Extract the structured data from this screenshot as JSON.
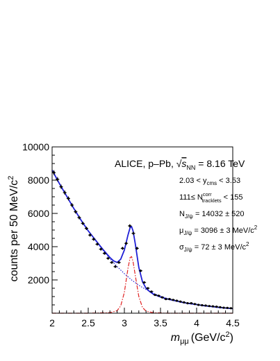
{
  "chart_data": {
    "type": "line",
    "xlabel": {
      "prefix": "m",
      "sub": "μμ",
      "unit": "(GeV/c",
      "sup": "2",
      "close": ")"
    },
    "ylabel": {
      "text": "counts per 50 MeV/c",
      "sup": "2"
    },
    "xlim": [
      2,
      4.5
    ],
    "ylim": [
      0,
      10000
    ],
    "x_ticks": [
      2,
      2.5,
      3,
      3.5,
      4,
      4.5
    ],
    "x_tick_labels": [
      "2",
      "2.5",
      "3",
      "3.5",
      "4",
      "4.5"
    ],
    "y_ticks": [
      2000,
      4000,
      6000,
      8000,
      10000
    ],
    "y_tick_labels": [
      "2000",
      "4000",
      "6000",
      "8000",
      "10000"
    ],
    "grid": false,
    "annotations": {
      "collision": {
        "pre": "ALICE, p–Pb, ",
        "rad": "s",
        "rad_sub": "NN",
        "post": " = 8.16 TeV"
      },
      "rapidity": {
        "pre": "2.03 < y",
        "sub": "cms",
        "post": " < 3.53"
      },
      "tracklets": {
        "pre": "111≤ N",
        "sup": "corr",
        "sub": "tracklets",
        "post": " < 155"
      },
      "n_jpsi": {
        "pre": "N",
        "sub": "J/ψ",
        "post": " = 14032 ± 520"
      },
      "mu_jpsi": {
        "pre": "μ",
        "sub": "J/ψ",
        "post": " = 3096 ± 3 MeV/c",
        "sup": "2"
      },
      "sigma_jpsi": {
        "pre": "σ",
        "sub": "J/ψ",
        "post": " = 72 ± 3 MeV/c",
        "sup": "2"
      }
    },
    "colors": {
      "total_fit": "#1f1fd6",
      "background": "#1f1fd6",
      "signal": "#e02020",
      "data": "#000000"
    },
    "series": [
      {
        "role": "data",
        "style": "points-with-error-bars",
        "x": [
          2.025,
          2.075,
          2.125,
          2.175,
          2.225,
          2.275,
          2.325,
          2.375,
          2.425,
          2.475,
          2.525,
          2.575,
          2.625,
          2.675,
          2.725,
          2.775,
          2.825,
          2.875,
          2.925,
          2.975,
          3.025,
          3.075,
          3.125,
          3.175,
          3.225,
          3.275,
          3.325,
          3.375,
          3.425,
          3.475,
          3.525,
          3.575,
          3.625,
          3.675,
          3.725,
          3.775,
          3.825,
          3.875,
          3.925,
          3.975,
          4.025,
          4.075,
          4.125,
          4.175,
          4.225,
          4.275,
          4.325,
          4.375,
          4.425,
          4.475
        ],
        "y": [
          8450,
          8050,
          7600,
          7250,
          6900,
          6500,
          6100,
          5750,
          5400,
          5100,
          4700,
          4450,
          4150,
          3850,
          3600,
          3300,
          3050,
          2800,
          3050,
          3900,
          4200,
          5250,
          4800,
          3900,
          2550,
          1850,
          1500,
          1300,
          1100,
          1050,
          950,
          850,
          850,
          800,
          750,
          700,
          650,
          600,
          600,
          550,
          500,
          480,
          460,
          430,
          410,
          390,
          360,
          330,
          320,
          300
        ],
        "yerr": [
          150,
          140,
          135,
          130,
          125,
          120,
          115,
          110,
          105,
          100,
          95,
          95,
          90,
          90,
          85,
          85,
          80,
          80,
          80,
          90,
          95,
          100,
          100,
          90,
          75,
          65,
          60,
          55,
          50,
          50,
          48,
          45,
          45,
          44,
          43,
          42,
          40,
          40,
          40,
          38,
          37,
          36,
          35,
          34,
          33,
          32,
          31,
          30,
          30,
          29
        ]
      },
      {
        "role": "total-fit",
        "style": "solid",
        "x": [
          2.0,
          2.1,
          2.2,
          2.3,
          2.4,
          2.5,
          2.6,
          2.7,
          2.8,
          2.85,
          2.9,
          2.95,
          3.0,
          3.05,
          3.08,
          3.1,
          3.12,
          3.15,
          3.2,
          3.25,
          3.3,
          3.35,
          3.4,
          3.5,
          3.6,
          3.7,
          3.8,
          3.9,
          4.0,
          4.1,
          4.2,
          4.3,
          4.4,
          4.5
        ],
        "y": [
          8600,
          7800,
          7050,
          6300,
          5600,
          4950,
          4400,
          3850,
          3350,
          3150,
          3050,
          3250,
          3800,
          4700,
          5150,
          5200,
          4950,
          4200,
          2750,
          1900,
          1500,
          1300,
          1150,
          970,
          850,
          750,
          650,
          580,
          520,
          450,
          400,
          350,
          310,
          280
        ]
      },
      {
        "role": "background",
        "style": "dotted",
        "x": [
          2.0,
          2.1,
          2.2,
          2.3,
          2.4,
          2.5,
          2.6,
          2.7,
          2.8,
          2.9,
          3.0,
          3.1,
          3.2,
          3.3,
          3.4,
          3.5,
          3.6,
          3.7,
          3.8,
          3.9,
          4.0,
          4.1,
          4.2,
          4.3,
          4.4,
          4.5
        ],
        "y": [
          8600,
          7800,
          7050,
          6300,
          5600,
          4950,
          4380,
          3800,
          3280,
          2800,
          2380,
          2000,
          1680,
          1420,
          1200,
          1020,
          880,
          760,
          660,
          580,
          510,
          450,
          400,
          350,
          310,
          280
        ]
      },
      {
        "role": "signal",
        "style": "dash-dot",
        "x": [
          2.0,
          2.5,
          2.8,
          2.9,
          2.95,
          3.0,
          3.05,
          3.08,
          3.1,
          3.12,
          3.15,
          3.2,
          3.25,
          3.3,
          3.4,
          3.6,
          4.0,
          4.5
        ],
        "y": [
          0,
          0,
          30,
          150,
          450,
          1250,
          2700,
          3350,
          3400,
          3100,
          2300,
          1000,
          350,
          120,
          30,
          0,
          0,
          0
        ]
      }
    ]
  }
}
